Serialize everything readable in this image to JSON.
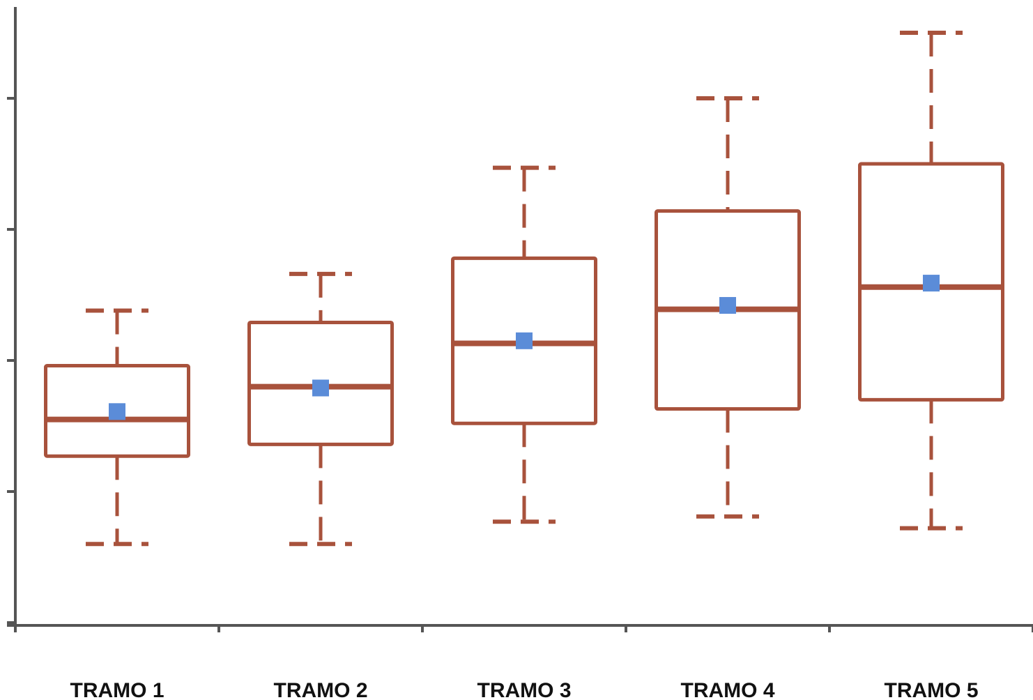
{
  "chart_data": {
    "type": "box",
    "categories": [
      "TRAMO 1",
      "TRAMO 2",
      "TRAMO 3",
      "TRAMO 4",
      "TRAMO 5"
    ],
    "y_tick_labels_visible": false,
    "y_ticks": [
      0,
      1,
      2,
      3,
      4
    ],
    "ylim": [
      0,
      4.7
    ],
    "grid": false,
    "legend": "none",
    "whisker_style": "dashed",
    "mean_marker": "square",
    "series": [
      {
        "values": [
          {
            "category": "TRAMO 1",
            "min": 0.6,
            "q1": 1.27,
            "median": 1.55,
            "q3": 1.96,
            "max": 2.38,
            "mean": 1.61
          },
          {
            "category": "TRAMO 2",
            "min": 0.6,
            "q1": 1.36,
            "median": 1.8,
            "q3": 2.29,
            "max": 2.66,
            "mean": 1.79
          },
          {
            "category": "TRAMO 3",
            "min": 0.77,
            "q1": 1.52,
            "median": 2.13,
            "q3": 2.78,
            "max": 3.47,
            "mean": 2.15
          },
          {
            "category": "TRAMO 4",
            "min": 0.81,
            "q1": 1.63,
            "median": 2.39,
            "q3": 3.14,
            "max": 4.0,
            "mean": 2.42
          },
          {
            "category": "TRAMO 5",
            "min": 0.72,
            "q1": 1.7,
            "median": 2.56,
            "q3": 3.5,
            "max": 4.5,
            "mean": 2.59
          }
        ]
      }
    ],
    "colors": {
      "box": "#a8523c",
      "mean": "#5b8cd8",
      "axis": "#555555"
    }
  }
}
